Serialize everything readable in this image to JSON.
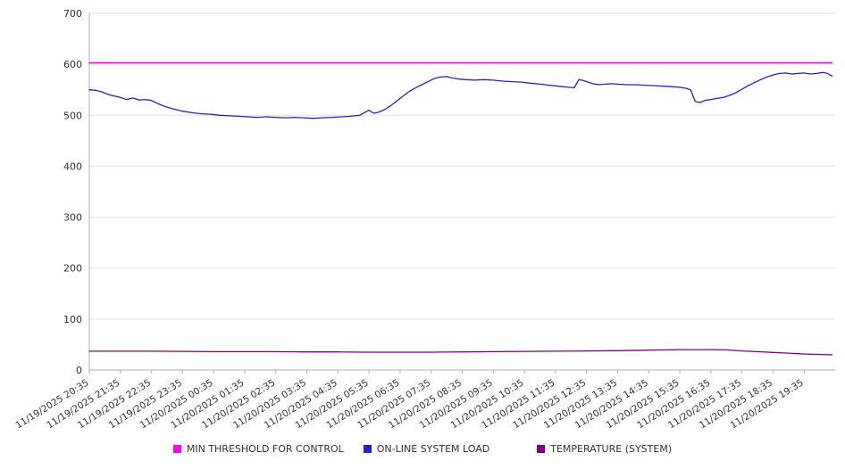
{
  "chart_data": {
    "type": "line",
    "title": "",
    "xlabel": "",
    "ylabel": "",
    "ylim": [
      0,
      700
    ],
    "x_domain": [
      0,
      24
    ],
    "y_ticks": [
      0,
      100,
      200,
      300,
      400,
      500,
      600,
      700
    ],
    "grid": "horizontal",
    "legend_position": "bottom",
    "x_tick_labels": [
      "11/19/2025 20:35",
      "11/19/2025 21:35",
      "11/19/2025 22:35",
      "11/19/2025 23:35",
      "11/20/2025 00:35",
      "11/20/2025 01:35",
      "11/20/2025 02:35",
      "11/20/2025 03:35",
      "11/20/2025 04:35",
      "11/20/2025 05:35",
      "11/20/2025 06:35",
      "11/20/2025 07:35",
      "11/20/2025 08:35",
      "11/20/2025 09:35",
      "11/20/2025 10:35",
      "11/20/2025 11:35",
      "11/20/2025 12:35",
      "11/20/2025 13:35",
      "11/20/2025 14:35",
      "11/20/2025 15:35",
      "11/20/2025 16:35",
      "11/20/2025 17:35",
      "11/20/2025 18:35",
      "11/20/2025 19:35"
    ],
    "series": [
      {
        "name": "MIN THRESHOLD FOR CONTROL",
        "color": "#ff00ff",
        "points": [
          [
            0,
            603
          ],
          [
            23.9,
            603
          ]
        ]
      },
      {
        "name": "ON-LINE SYSTEM LOAD",
        "color": "#2222cc",
        "points": [
          [
            0,
            550
          ],
          [
            0.2,
            549
          ],
          [
            0.4,
            546
          ],
          [
            0.6,
            541
          ],
          [
            0.8,
            538
          ],
          [
            1.0,
            535
          ],
          [
            1.2,
            531
          ],
          [
            1.4,
            534
          ],
          [
            1.6,
            530
          ],
          [
            1.8,
            531
          ],
          [
            2.0,
            529
          ],
          [
            2.2,
            523
          ],
          [
            2.4,
            518
          ],
          [
            2.6,
            514
          ],
          [
            2.8,
            511
          ],
          [
            3.0,
            508
          ],
          [
            3.3,
            505
          ],
          [
            3.6,
            503
          ],
          [
            3.9,
            502
          ],
          [
            4.2,
            500
          ],
          [
            4.5,
            499
          ],
          [
            4.8,
            498
          ],
          [
            5.1,
            497
          ],
          [
            5.4,
            496
          ],
          [
            5.7,
            497
          ],
          [
            6.0,
            496
          ],
          [
            6.3,
            495
          ],
          [
            6.6,
            496
          ],
          [
            6.9,
            495
          ],
          [
            7.2,
            494
          ],
          [
            7.5,
            495
          ],
          [
            7.8,
            496
          ],
          [
            8.1,
            497
          ],
          [
            8.4,
            498
          ],
          [
            8.7,
            500
          ],
          [
            9.0,
            510
          ],
          [
            9.15,
            504
          ],
          [
            9.3,
            506
          ],
          [
            9.5,
            511
          ],
          [
            9.7,
            519
          ],
          [
            9.9,
            528
          ],
          [
            10.1,
            538
          ],
          [
            10.3,
            547
          ],
          [
            10.5,
            554
          ],
          [
            10.7,
            560
          ],
          [
            10.9,
            566
          ],
          [
            11.1,
            572
          ],
          [
            11.3,
            575
          ],
          [
            11.5,
            576
          ],
          [
            11.7,
            573
          ],
          [
            11.9,
            571
          ],
          [
            12.1,
            570
          ],
          [
            12.4,
            569
          ],
          [
            12.7,
            570
          ],
          [
            13.0,
            569
          ],
          [
            13.3,
            567
          ],
          [
            13.6,
            566
          ],
          [
            13.9,
            565
          ],
          [
            14.2,
            563
          ],
          [
            14.5,
            561
          ],
          [
            14.8,
            559
          ],
          [
            15.1,
            557
          ],
          [
            15.4,
            555
          ],
          [
            15.6,
            554
          ],
          [
            15.75,
            570
          ],
          [
            15.9,
            568
          ],
          [
            16.05,
            565
          ],
          [
            16.2,
            562
          ],
          [
            16.4,
            560
          ],
          [
            16.6,
            561
          ],
          [
            16.8,
            562
          ],
          [
            17.0,
            561
          ],
          [
            17.3,
            560
          ],
          [
            17.6,
            560
          ],
          [
            17.9,
            559
          ],
          [
            18.2,
            558
          ],
          [
            18.5,
            557
          ],
          [
            18.8,
            556
          ],
          [
            19.0,
            555
          ],
          [
            19.2,
            553
          ],
          [
            19.35,
            550
          ],
          [
            19.5,
            527
          ],
          [
            19.65,
            525
          ],
          [
            19.8,
            529
          ],
          [
            20.0,
            531
          ],
          [
            20.2,
            533
          ],
          [
            20.4,
            535
          ],
          [
            20.6,
            539
          ],
          [
            20.8,
            544
          ],
          [
            21.0,
            551
          ],
          [
            21.2,
            558
          ],
          [
            21.4,
            564
          ],
          [
            21.6,
            570
          ],
          [
            21.8,
            575
          ],
          [
            22.0,
            579
          ],
          [
            22.2,
            582
          ],
          [
            22.4,
            583
          ],
          [
            22.6,
            581
          ],
          [
            22.8,
            582
          ],
          [
            23.0,
            583
          ],
          [
            23.2,
            581
          ],
          [
            23.4,
            582
          ],
          [
            23.6,
            584
          ],
          [
            23.75,
            582
          ],
          [
            23.9,
            577
          ]
        ]
      },
      {
        "name": "TEMPERATURE (SYSTEM)",
        "color": "#800080",
        "points": [
          [
            0,
            37
          ],
          [
            1,
            37
          ],
          [
            2,
            37
          ],
          [
            3,
            36.5
          ],
          [
            4,
            36
          ],
          [
            5,
            36
          ],
          [
            6,
            36
          ],
          [
            7,
            35.5
          ],
          [
            8,
            35.5
          ],
          [
            9,
            35
          ],
          [
            10,
            35
          ],
          [
            11,
            35
          ],
          [
            12,
            35.5
          ],
          [
            13,
            36
          ],
          [
            14,
            36.5
          ],
          [
            15,
            37
          ],
          [
            16,
            37.5
          ],
          [
            17,
            38
          ],
          [
            18,
            39
          ],
          [
            19,
            40
          ],
          [
            19.5,
            40
          ],
          [
            20,
            40
          ],
          [
            20.5,
            39.5
          ],
          [
            21,
            37.5
          ],
          [
            21.5,
            36
          ],
          [
            22,
            34.5
          ],
          [
            22.5,
            33
          ],
          [
            23,
            31.5
          ],
          [
            23.5,
            30.5
          ],
          [
            23.9,
            30
          ]
        ]
      }
    ]
  },
  "legend": {
    "items": [
      {
        "label": "MIN THRESHOLD FOR CONTROL"
      },
      {
        "label": "ON-LINE SYSTEM LOAD"
      },
      {
        "label": "TEMPERATURE (SYSTEM)"
      }
    ]
  }
}
